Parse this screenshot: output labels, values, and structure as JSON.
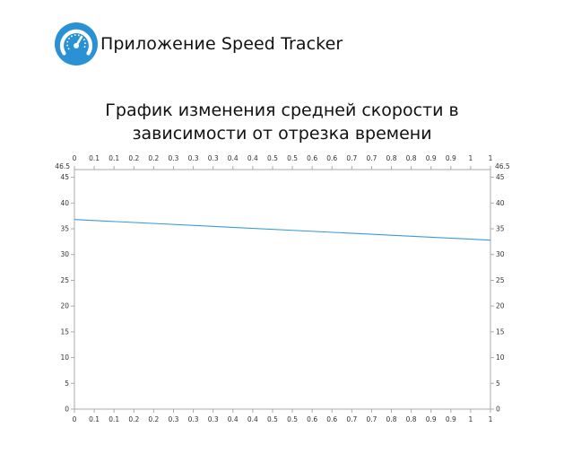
{
  "app": {
    "title": "Приложение Speed Tracker",
    "logo_icon": "speedometer-icon"
  },
  "chart_data": {
    "type": "line",
    "title_lines": [
      "График изменения средней скорости в",
      "зависимости от отрезка времени"
    ],
    "xlabel": "",
    "ylabel": "",
    "x_tick_labels": [
      "0",
      "0.1",
      "0.1",
      "0.2",
      "0.2",
      "0.3",
      "0.3",
      "0.3",
      "0.4",
      "0.4",
      "0.5",
      "0.5",
      "0.6",
      "0.6",
      "0.7",
      "0.7",
      "0.8",
      "0.8",
      "0.9",
      "0.9",
      "1",
      "1"
    ],
    "y_ticks": [
      0,
      5,
      10,
      15,
      20,
      25,
      30,
      35,
      40,
      45
    ],
    "y_max_label": "46.5",
    "xlim": [
      0,
      1
    ],
    "ylim": [
      0,
      46.5
    ],
    "grid": false,
    "series": [
      {
        "color": "#3a9ad9",
        "x": [
          0,
          1
        ],
        "y": [
          36.8,
          32.8
        ]
      }
    ]
  },
  "colors": {
    "logo_bg": "#2a92d4",
    "axis": "#aaaaaa",
    "line": "#3a9ad9"
  }
}
